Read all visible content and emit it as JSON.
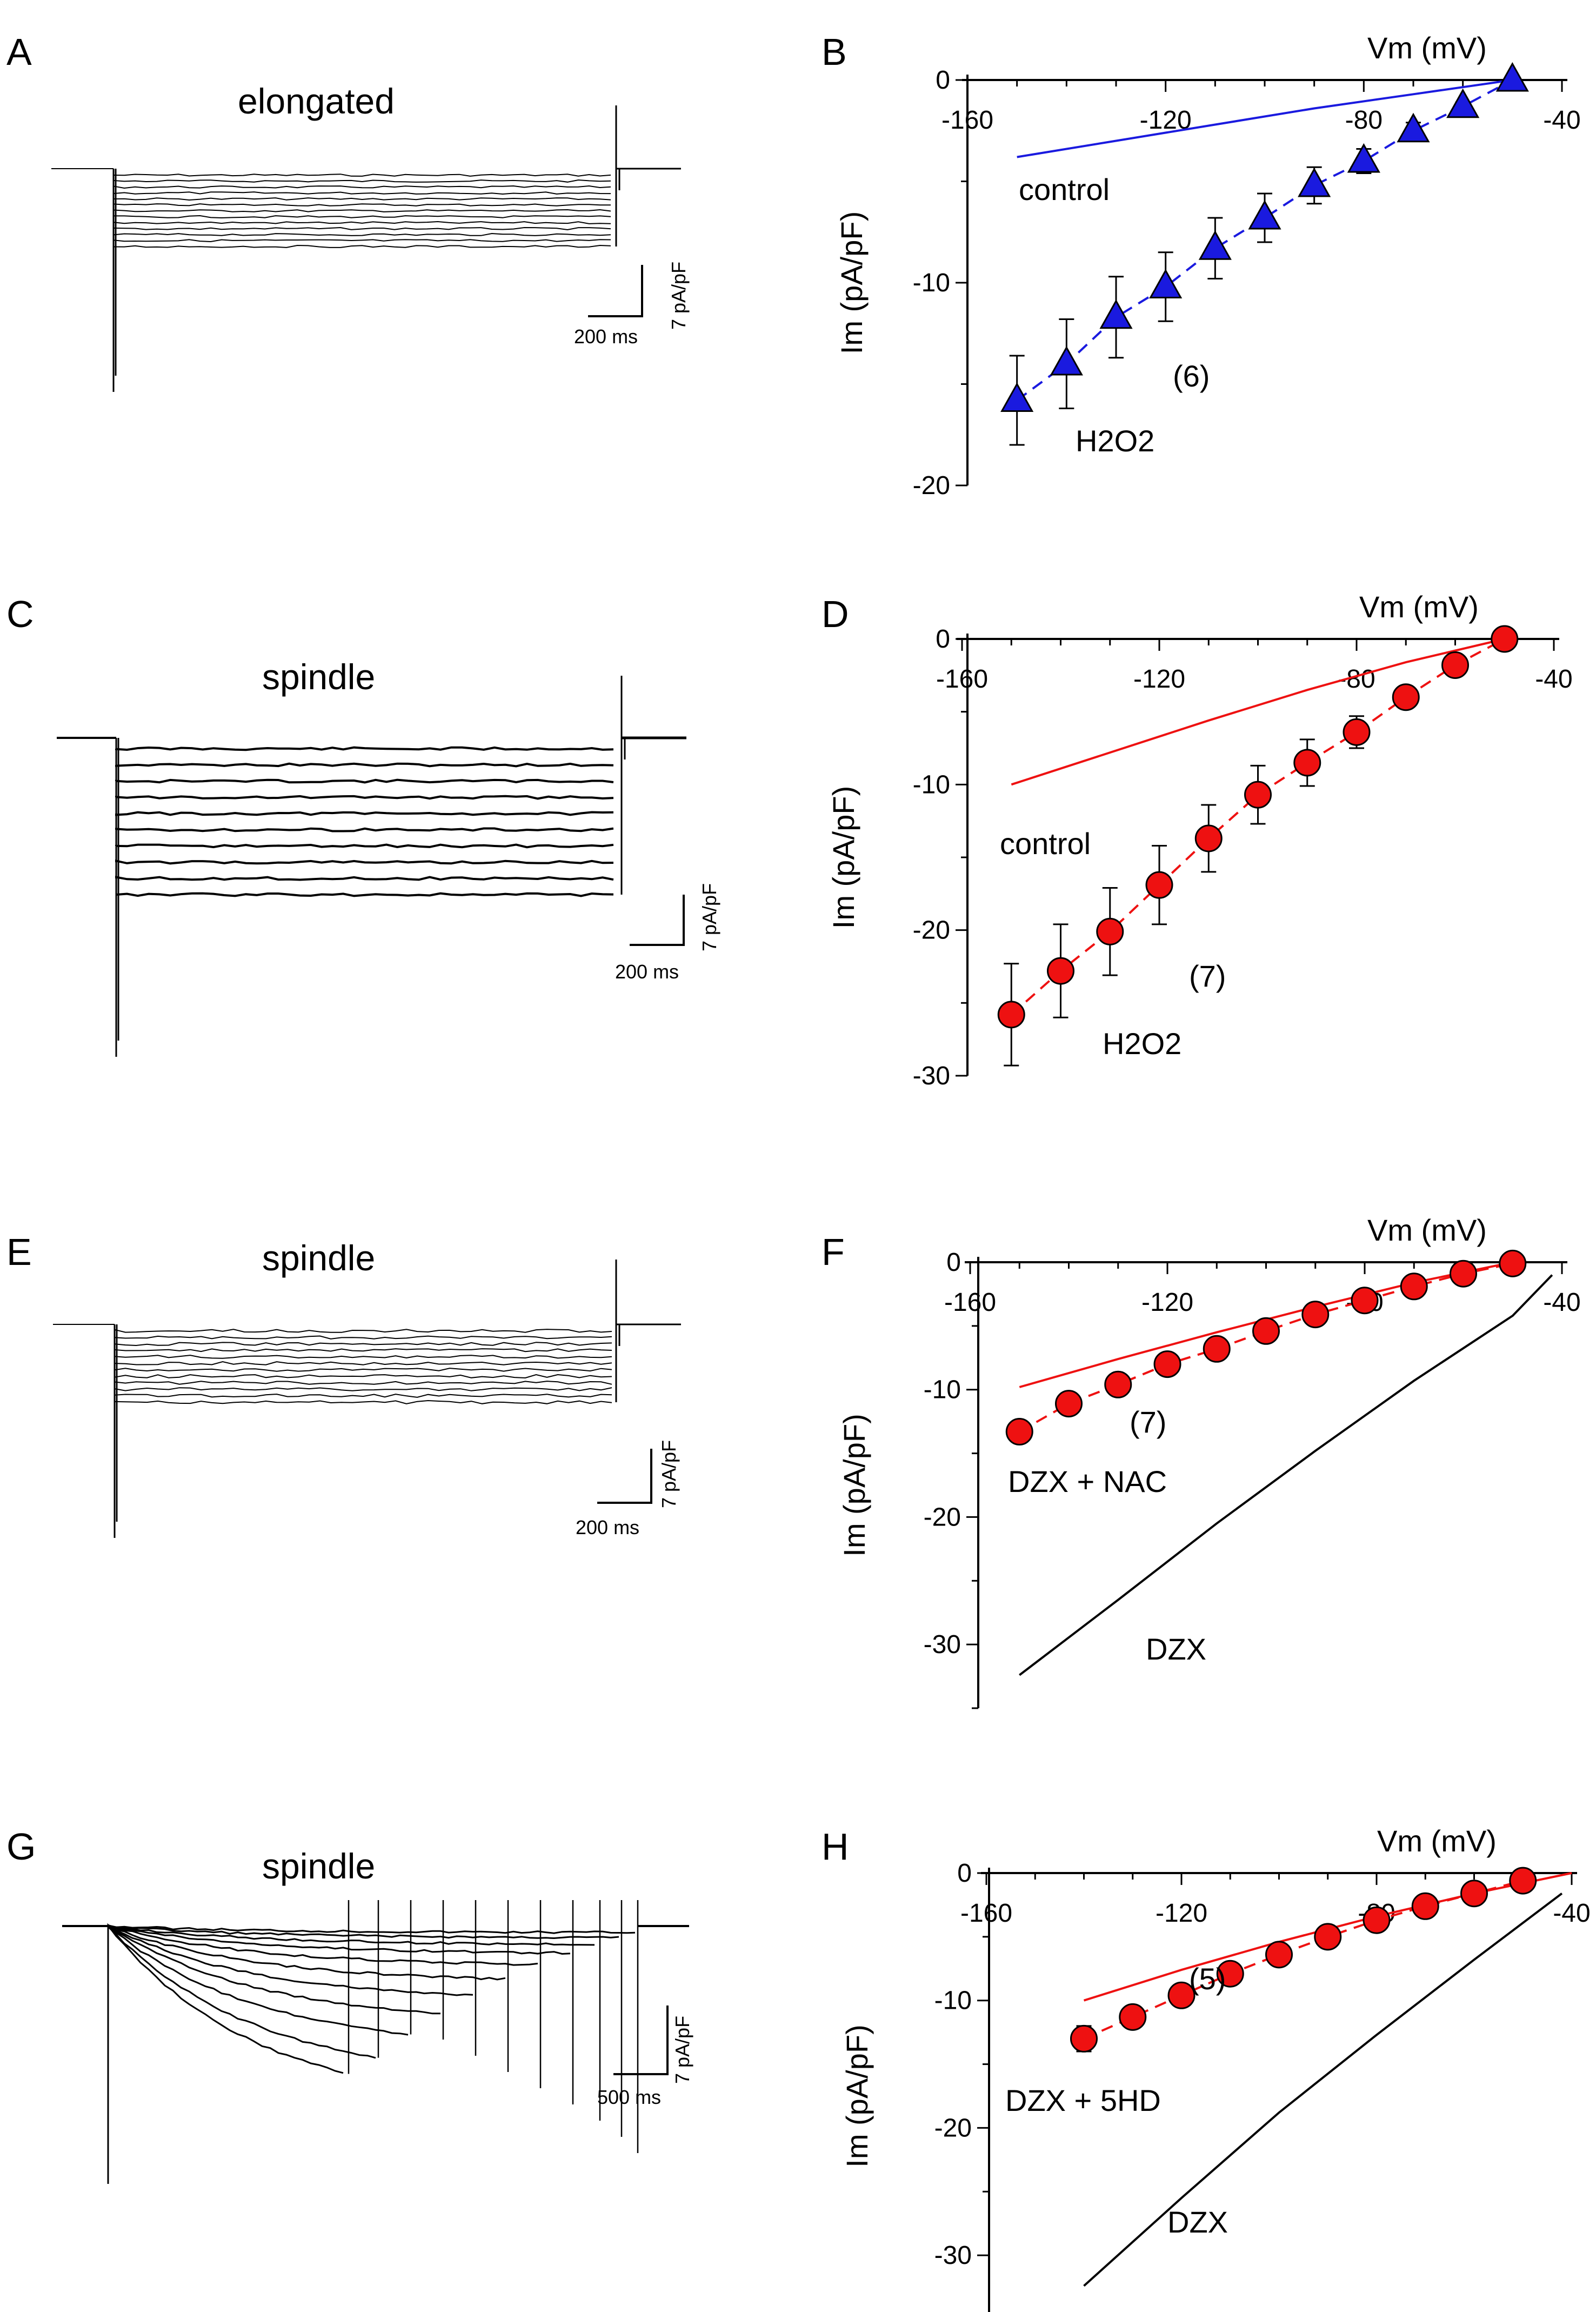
{
  "figure": {
    "panel_labels": [
      "A",
      "B",
      "C",
      "D",
      "E",
      "F",
      "G",
      "H"
    ],
    "trace_panels": [
      {
        "label": "A",
        "title": "elongated",
        "scale_time": "200 ms",
        "scale_current": "7 pA/pF"
      },
      {
        "label": "C",
        "title": "spindle",
        "scale_time": "200 ms",
        "scale_current": "7 pA/pF"
      },
      {
        "label": "E",
        "title": "spindle",
        "scale_time": "200 ms",
        "scale_current": "7 pA/pF"
      },
      {
        "label": "G",
        "title": "spindle",
        "scale_time": "500 ms",
        "scale_current": "7 pA/pF"
      }
    ]
  },
  "chart_data": [
    {
      "panel": "B",
      "type": "line",
      "xlabel": "Vm (mV)",
      "ylabel": "Im (pA/pF)",
      "xlim": [
        -160,
        -40
      ],
      "ylim": [
        -20,
        0
      ],
      "x_ticks": [
        -160,
        -120,
        -80,
        -40
      ],
      "y_ticks": [
        0,
        -10,
        -20
      ],
      "annotations": {
        "control": "control",
        "n": "(6)",
        "treat": "H2O2"
      },
      "colors": {
        "treat": "#1a1adf",
        "control": "#1a1adf"
      },
      "marker": "triangle",
      "control_curve": {
        "x": [
          -150,
          -130,
          -110,
          -90,
          -70,
          -50
        ],
        "y": [
          -3.8,
          -3.0,
          -2.2,
          -1.4,
          -0.7,
          0
        ]
      },
      "series": [
        {
          "x": [
            -150,
            -140,
            -130,
            -120,
            -110,
            -100,
            -90,
            -80,
            -70,
            -60,
            -50
          ],
          "y": [
            -15.8,
            -14.0,
            -11.7,
            -10.2,
            -8.3,
            -6.8,
            -5.2,
            -4.0,
            -2.5,
            -1.3,
            0
          ],
          "err": [
            2.2,
            2.2,
            2.0,
            1.7,
            1.5,
            1.2,
            0.9,
            0.6,
            0.4,
            0.2,
            0
          ]
        }
      ]
    },
    {
      "panel": "D",
      "type": "line",
      "xlabel": "Vm (mV)",
      "ylabel": "Im (pA/pF)",
      "xlim": [
        -160,
        -40
      ],
      "ylim": [
        -30,
        0
      ],
      "x_ticks": [
        -160,
        -120,
        -80,
        -40
      ],
      "y_ticks": [
        0,
        -10,
        -20,
        -30
      ],
      "annotations": {
        "control": "control",
        "n": "(7)",
        "treat": "H2O2"
      },
      "colors": {
        "treat": "#ee1111",
        "control": "#ee1111"
      },
      "marker": "circle",
      "control_curve": {
        "x": [
          -150,
          -130,
          -110,
          -90,
          -70,
          -50
        ],
        "y": [
          -10.0,
          -7.8,
          -5.6,
          -3.5,
          -1.6,
          0
        ]
      },
      "series": [
        {
          "x": [
            -150,
            -140,
            -130,
            -120,
            -110,
            -100,
            -90,
            -80,
            -70,
            -60,
            -50
          ],
          "y": [
            -25.8,
            -22.8,
            -20.1,
            -16.9,
            -13.7,
            -10.7,
            -8.5,
            -6.4,
            -4.0,
            -1.8,
            0
          ],
          "err": [
            3.5,
            3.2,
            3.0,
            2.7,
            2.3,
            2.0,
            1.6,
            1.1,
            0.6,
            0.3,
            0
          ]
        }
      ]
    },
    {
      "panel": "F",
      "type": "line",
      "xlabel": "Vm (mV)",
      "ylabel": "Im (pA/pF)",
      "xlim": [
        -160,
        -40
      ],
      "ylim": [
        -35,
        0
      ],
      "x_ticks": [
        -160,
        -120,
        -80,
        -40
      ],
      "y_ticks": [
        0,
        -10,
        -20,
        -30
      ],
      "annotations": {
        "dzx": "DZX",
        "n": "(7)",
        "treat": "DZX + NAC"
      },
      "colors": {
        "treat": "#ee1111",
        "control": "#ee1111",
        "dzx": "#000000"
      },
      "marker": "circle",
      "control_curve": {
        "x": [
          -150,
          -130,
          -110,
          -90,
          -70,
          -50
        ],
        "y": [
          -9.8,
          -7.6,
          -5.5,
          -3.5,
          -1.6,
          0
        ]
      },
      "dzx_curve": {
        "x": [
          -150,
          -130,
          -110,
          -90,
          -70,
          -50,
          -42
        ],
        "y": [
          -32.4,
          -26.5,
          -20.5,
          -14.8,
          -9.3,
          -4.2,
          -1.0
        ]
      },
      "series": [
        {
          "x": [
            -150,
            -140,
            -130,
            -120,
            -110,
            -100,
            -90,
            -80,
            -70,
            -60,
            -50
          ],
          "y": [
            -13.3,
            -11.1,
            -9.6,
            -8.0,
            -6.8,
            -5.4,
            -4.1,
            -3.0,
            -1.9,
            -0.9,
            -0.1
          ],
          "err": [
            0.8,
            0.7,
            0.6,
            0.5,
            0.4,
            0.4,
            0.3,
            0.3,
            0.2,
            0.1,
            0
          ]
        }
      ]
    },
    {
      "panel": "H",
      "type": "line",
      "xlabel": "Vm (mV)",
      "ylabel": "Im (pA/pF)",
      "xlim": [
        -160,
        -40
      ],
      "ylim": [
        -35,
        0
      ],
      "x_ticks": [
        -160,
        -120,
        -80,
        -40
      ],
      "y_ticks": [
        0,
        -10,
        -20,
        -30
      ],
      "annotations": {
        "dzx": "DZX",
        "n": "(5)",
        "treat": "DZX + 5HD"
      },
      "colors": {
        "treat": "#ee1111",
        "control": "#ee1111",
        "dzx": "#000000"
      },
      "marker": "circle",
      "control_curve": {
        "x": [
          -140,
          -120,
          -100,
          -80,
          -60,
          -40
        ],
        "y": [
          -10.0,
          -7.6,
          -5.4,
          -3.4,
          -1.6,
          0
        ]
      },
      "dzx_curve": {
        "x": [
          -140,
          -120,
          -100,
          -80,
          -60,
          -42
        ],
        "y": [
          -32.4,
          -25.5,
          -18.8,
          -12.7,
          -6.8,
          -1.6
        ]
      },
      "series": [
        {
          "x": [
            -140,
            -130,
            -120,
            -110,
            -100,
            -90,
            -80,
            -70,
            -60,
            -50
          ],
          "y": [
            -13.0,
            -11.3,
            -9.6,
            -7.9,
            -6.4,
            -5.0,
            -3.7,
            -2.6,
            -1.6,
            -0.6
          ],
          "err": [
            1.0,
            0.8,
            0.7,
            0.6,
            0.5,
            0.4,
            0.3,
            0.3,
            0.2,
            0.1
          ]
        }
      ]
    }
  ]
}
